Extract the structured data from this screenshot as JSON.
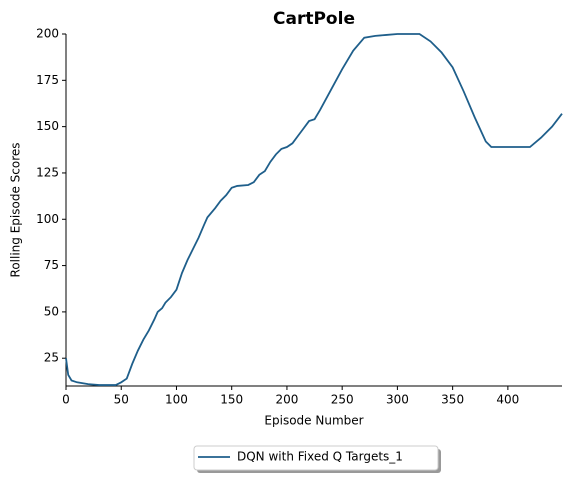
{
  "chart_data": {
    "type": "line",
    "title": "CartPole",
    "xlabel": "Episode Number",
    "ylabel": "Rolling Episode Scores",
    "x": [
      0,
      2,
      5,
      10,
      20,
      30,
      45,
      50,
      55,
      60,
      65,
      70,
      75,
      80,
      83,
      87,
      90,
      95,
      100,
      105,
      110,
      115,
      120,
      125,
      128,
      135,
      140,
      145,
      150,
      155,
      165,
      170,
      175,
      180,
      185,
      190,
      195,
      200,
      205,
      210,
      215,
      220,
      225,
      230,
      240,
      250,
      260,
      270,
      280,
      290,
      300,
      320,
      330,
      340,
      350,
      360,
      370,
      380,
      385,
      400,
      420,
      430,
      440,
      449
    ],
    "series": [
      {
        "name": "DQN with Fixed Q Targets_1",
        "color": "#1f5f8b",
        "values": [
          25,
          16,
          13,
          12,
          11,
          10.5,
          10.5,
          12,
          14,
          22,
          29,
          35,
          40,
          46,
          50,
          52,
          55,
          58,
          62,
          71,
          78,
          84,
          90,
          97,
          101,
          106,
          110,
          113,
          117,
          118,
          118.5,
          120,
          124,
          126,
          131,
          135,
          138,
          139,
          141,
          145,
          149,
          153,
          154,
          159,
          170,
          181,
          191,
          198,
          199,
          199.5,
          200,
          200,
          196,
          190,
          182,
          169,
          155,
          142,
          139,
          139,
          139,
          144,
          150,
          157
        ]
      }
    ],
    "xlim": [
      0,
      449
    ],
    "ylim": [
      10,
      200
    ],
    "xticks": [
      0,
      50,
      100,
      150,
      200,
      250,
      300,
      350,
      400
    ],
    "yticks": [
      25,
      50,
      75,
      100,
      125,
      150,
      175,
      200
    ],
    "legend": "lower center"
  }
}
